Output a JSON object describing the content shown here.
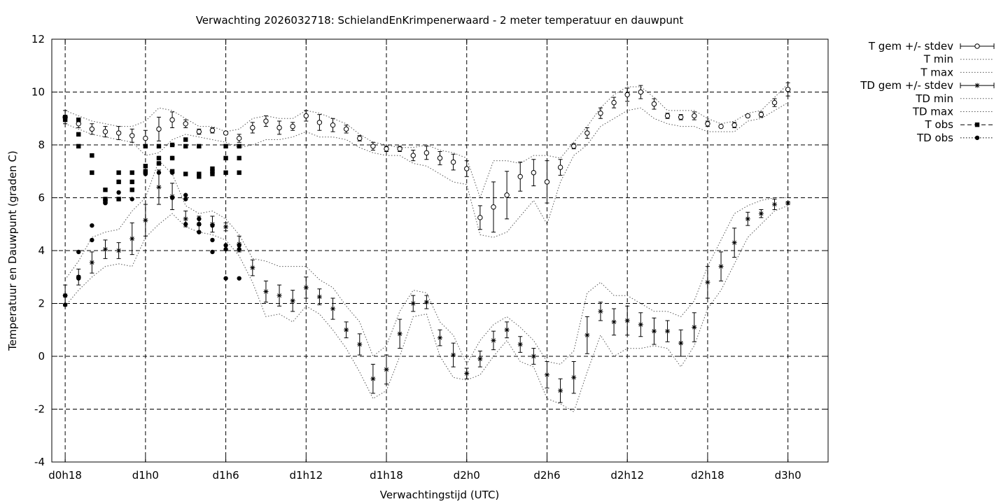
{
  "chart_data": {
    "type": "line",
    "title": "Verwachting 2026032718: SchielandEnKrimpenerwaard - 2 meter temperatuur en dauwpunt",
    "xlabel": "Verwachtingstijd (UTC)",
    "ylabel": "Temperatuur en Dauwpunt (graden C)",
    "xlim": [
      -1,
      57
    ],
    "ylim": [
      -4,
      12
    ],
    "x_ticks": [
      {
        "x": 0,
        "label": "d0h18"
      },
      {
        "x": 6,
        "label": "d1h0"
      },
      {
        "x": 12,
        "label": "d1h6"
      },
      {
        "x": 18,
        "label": "d1h12"
      },
      {
        "x": 24,
        "label": "d1h18"
      },
      {
        "x": 30,
        "label": "d2h0"
      },
      {
        "x": 36,
        "label": "d2h6"
      },
      {
        "x": 42,
        "label": "d2h12"
      },
      {
        "x": 48,
        "label": "d2h18"
      },
      {
        "x": 54,
        "label": "d3h0"
      }
    ],
    "y_ticks": [
      -4,
      -2,
      0,
      2,
      4,
      6,
      8,
      10,
      12
    ],
    "grid": true,
    "legend_position": "outside right",
    "legend": [
      "T gem +/- stdev",
      "T min",
      "T max",
      "TD gem +/- stdev",
      "TD min",
      "TD max",
      "T obs",
      "TD obs"
    ],
    "series": [
      {
        "name": "T gem +/- stdev",
        "x": [
          0,
          1,
          2,
          3,
          4,
          5,
          6,
          7,
          8,
          9,
          10,
          11,
          12,
          13,
          14,
          15,
          16,
          17,
          18,
          19,
          20,
          21,
          22,
          23,
          24,
          25,
          26,
          27,
          28,
          29,
          30,
          31,
          32,
          33,
          34,
          35,
          36,
          37,
          38,
          39,
          40,
          41,
          42,
          43,
          44,
          45,
          46,
          47,
          48,
          49,
          50,
          51,
          52,
          53,
          54
        ],
        "mean": [
          9.05,
          8.8,
          8.6,
          8.5,
          8.45,
          8.35,
          8.25,
          8.6,
          8.95,
          8.8,
          8.5,
          8.55,
          8.45,
          8.25,
          8.65,
          8.9,
          8.65,
          8.7,
          9.1,
          8.85,
          8.75,
          8.6,
          8.25,
          7.95,
          7.85,
          7.85,
          7.6,
          7.7,
          7.5,
          7.35,
          7.1,
          5.25,
          5.65,
          6.1,
          6.8,
          6.95,
          6.6,
          7.15,
          7.95,
          8.45,
          9.2,
          9.6,
          9.9,
          10.0,
          9.55,
          9.1,
          9.05,
          9.1,
          8.8,
          8.7,
          8.75,
          9.1,
          9.15,
          9.6,
          10.1
        ],
        "stdev": [
          0.25,
          0.15,
          0.2,
          0.2,
          0.25,
          0.25,
          0.3,
          0.45,
          0.3,
          0.15,
          0.1,
          0.1,
          0.05,
          0.15,
          0.2,
          0.2,
          0.25,
          0.15,
          0.2,
          0.3,
          0.25,
          0.15,
          0.1,
          0.15,
          0.1,
          0.1,
          0.2,
          0.25,
          0.25,
          0.3,
          0.3,
          0.45,
          0.95,
          0.9,
          0.55,
          0.5,
          0.8,
          0.3,
          0.1,
          0.2,
          0.2,
          0.2,
          0.25,
          0.25,
          0.2,
          0.1,
          0.1,
          0.15,
          0.1,
          0.05,
          0.1,
          0.05,
          0.1,
          0.15,
          0.25
        ]
      },
      {
        "name": "T min",
        "x": [
          0,
          1,
          2,
          3,
          4,
          5,
          6,
          7,
          8,
          9,
          10,
          11,
          12,
          13,
          14,
          15,
          16,
          17,
          18,
          19,
          20,
          21,
          22,
          23,
          24,
          25,
          26,
          27,
          28,
          29,
          30,
          31,
          32,
          33,
          34,
          35,
          36,
          37,
          38,
          39,
          40,
          41,
          42,
          43,
          44,
          45,
          46,
          47,
          48,
          49,
          50,
          51,
          52,
          53,
          54
        ],
        "values": [
          8.8,
          8.6,
          8.4,
          8.3,
          8.2,
          8.1,
          7.6,
          7.7,
          8.2,
          8.4,
          8.3,
          8.2,
          8.1,
          7.9,
          8.0,
          8.2,
          8.2,
          8.3,
          8.5,
          8.3,
          8.3,
          8.2,
          7.9,
          7.7,
          7.6,
          7.6,
          7.3,
          7.2,
          6.9,
          6.6,
          6.5,
          4.6,
          4.5,
          4.7,
          5.3,
          5.9,
          5.0,
          6.6,
          7.6,
          8.0,
          8.7,
          9.0,
          9.3,
          9.4,
          9.0,
          8.8,
          8.7,
          8.7,
          8.5,
          8.5,
          8.5,
          8.9,
          9.0,
          9.3,
          9.6
        ]
      },
      {
        "name": "T max",
        "x": [
          0,
          1,
          2,
          3,
          4,
          5,
          6,
          7,
          8,
          9,
          10,
          11,
          12,
          13,
          14,
          15,
          16,
          17,
          18,
          19,
          20,
          21,
          22,
          23,
          24,
          25,
          26,
          27,
          28,
          29,
          30,
          31,
          32,
          33,
          34,
          35,
          36,
          37,
          38,
          39,
          40,
          41,
          42,
          43,
          44,
          45,
          46,
          47,
          48,
          49,
          50,
          51,
          52,
          53,
          54
        ],
        "values": [
          9.3,
          9.1,
          8.9,
          8.8,
          8.7,
          8.7,
          8.9,
          9.4,
          9.3,
          9.0,
          8.7,
          8.7,
          8.5,
          8.6,
          9.0,
          9.1,
          9.0,
          9.0,
          9.3,
          9.2,
          9.0,
          8.8,
          8.4,
          8.1,
          8.0,
          7.9,
          7.9,
          8.0,
          7.8,
          7.7,
          7.5,
          6.0,
          7.4,
          7.4,
          7.3,
          7.6,
          7.6,
          7.5,
          8.1,
          8.7,
          9.4,
          9.9,
          10.2,
          10.2,
          9.8,
          9.3,
          9.3,
          9.3,
          9.0,
          8.8,
          8.9,
          9.2,
          9.3,
          9.8,
          10.3
        ]
      },
      {
        "name": "TD gem +/- stdev",
        "x": [
          0,
          1,
          2,
          3,
          4,
          5,
          6,
          7,
          8,
          9,
          10,
          11,
          12,
          13,
          14,
          15,
          16,
          17,
          18,
          19,
          20,
          21,
          22,
          23,
          24,
          25,
          26,
          27,
          28,
          29,
          30,
          31,
          32,
          33,
          34,
          35,
          36,
          37,
          38,
          39,
          40,
          41,
          42,
          43,
          44,
          45,
          46,
          47,
          48,
          49,
          50,
          51,
          52,
          53,
          54
        ],
        "mean": [
          2.3,
          3.0,
          3.55,
          4.05,
          4.0,
          4.45,
          5.15,
          6.4,
          6.05,
          5.2,
          5.0,
          5.0,
          4.9,
          4.25,
          3.35,
          2.45,
          2.3,
          2.1,
          2.6,
          2.25,
          1.8,
          1.0,
          0.45,
          -0.85,
          -0.5,
          0.85,
          2.0,
          2.05,
          0.7,
          0.05,
          -0.65,
          -0.1,
          0.6,
          1.0,
          0.45,
          0.0,
          -0.7,
          -1.3,
          -0.8,
          0.8,
          1.7,
          1.3,
          1.35,
          1.2,
          0.95,
          0.95,
          0.5,
          1.1,
          2.8,
          3.4,
          4.3,
          5.2,
          5.4,
          5.75,
          5.8
        ],
        "stdev": [
          0.4,
          0.3,
          0.4,
          0.35,
          0.3,
          0.6,
          0.6,
          0.65,
          0.5,
          0.3,
          0.3,
          0.3,
          0.15,
          0.3,
          0.3,
          0.4,
          0.4,
          0.4,
          0.4,
          0.3,
          0.4,
          0.3,
          0.4,
          0.55,
          0.55,
          0.55,
          0.3,
          0.25,
          0.3,
          0.45,
          0.2,
          0.3,
          0.35,
          0.3,
          0.3,
          0.3,
          0.5,
          0.45,
          0.6,
          0.7,
          0.35,
          0.5,
          0.55,
          0.45,
          0.5,
          0.4,
          0.5,
          0.55,
          0.6,
          0.55,
          0.55,
          0.25,
          0.15,
          0.2,
          0.05
        ]
      },
      {
        "name": "TD min",
        "x": [
          0,
          1,
          2,
          3,
          4,
          5,
          6,
          7,
          8,
          9,
          10,
          11,
          12,
          13,
          14,
          15,
          16,
          17,
          18,
          19,
          20,
          21,
          22,
          23,
          24,
          25,
          26,
          27,
          28,
          29,
          30,
          31,
          32,
          33,
          34,
          35,
          36,
          37,
          38,
          39,
          40,
          41,
          42,
          43,
          44,
          45,
          46,
          47,
          48,
          49,
          50,
          51,
          52,
          53,
          54
        ],
        "values": [
          1.9,
          2.5,
          3.0,
          3.4,
          3.5,
          3.4,
          4.5,
          5.0,
          5.4,
          4.9,
          4.7,
          4.6,
          4.4,
          3.8,
          2.8,
          1.5,
          1.6,
          1.3,
          1.9,
          1.6,
          1.0,
          0.3,
          -0.6,
          -1.6,
          -1.3,
          0.0,
          1.5,
          1.6,
          0.0,
          -0.8,
          -0.9,
          -0.7,
          0.0,
          0.6,
          -0.2,
          -0.4,
          -1.6,
          -1.8,
          -2.1,
          -0.6,
          0.8,
          0.0,
          0.3,
          0.3,
          0.4,
          0.3,
          -0.4,
          0.4,
          1.8,
          2.5,
          3.5,
          4.5,
          5.0,
          5.5,
          5.7
        ]
      },
      {
        "name": "TD max",
        "x": [
          0,
          1,
          2,
          3,
          4,
          5,
          6,
          7,
          8,
          9,
          10,
          11,
          12,
          13,
          14,
          15,
          16,
          17,
          18,
          19,
          20,
          21,
          22,
          23,
          24,
          25,
          26,
          27,
          28,
          29,
          30,
          31,
          32,
          33,
          34,
          35,
          36,
          37,
          38,
          39,
          40,
          41,
          42,
          43,
          44,
          45,
          46,
          47,
          48,
          49,
          50,
          51,
          52,
          53,
          54
        ],
        "values": [
          2.9,
          3.6,
          4.5,
          4.7,
          4.8,
          5.5,
          6.0,
          7.4,
          6.9,
          5.7,
          5.4,
          5.5,
          5.2,
          4.6,
          3.7,
          3.6,
          3.4,
          3.4,
          3.4,
          2.9,
          2.6,
          1.9,
          1.3,
          0.0,
          0.4,
          1.7,
          2.5,
          2.4,
          1.3,
          0.8,
          -0.3,
          0.6,
          1.2,
          1.5,
          1.1,
          0.6,
          -0.2,
          -0.3,
          0.2,
          2.4,
          2.8,
          2.3,
          2.3,
          2.0,
          1.7,
          1.7,
          1.5,
          2.1,
          3.4,
          4.4,
          5.4,
          5.7,
          5.9,
          6.0,
          6.0
        ]
      },
      {
        "name": "T obs",
        "x": [
          0,
          0,
          1,
          1,
          1,
          2,
          2,
          3,
          3,
          3,
          4,
          4,
          4,
          5,
          5,
          5,
          6,
          6,
          6,
          7,
          7,
          7,
          8,
          8,
          8,
          9,
          9,
          9,
          10,
          10,
          10,
          11,
          11,
          11,
          12,
          12,
          12,
          13,
          13,
          13
        ],
        "values": [
          8.95,
          9.05,
          8.95,
          8.4,
          7.95,
          7.6,
          6.95,
          6.3,
          5.95,
          5.85,
          6.95,
          6.6,
          5.95,
          6.95,
          6.6,
          6.3,
          7.95,
          7.2,
          7.0,
          7.95,
          7.5,
          7.3,
          8.0,
          7.5,
          7.0,
          8.2,
          7.95,
          6.9,
          7.95,
          6.9,
          6.8,
          7.1,
          7.0,
          6.9,
          7.95,
          7.5,
          6.95,
          7.95,
          7.5,
          6.95
        ]
      },
      {
        "name": "TD obs",
        "x": [
          0,
          0,
          1,
          1,
          1,
          2,
          2,
          3,
          3,
          3,
          4,
          4,
          4,
          5,
          5,
          5,
          6,
          6,
          6,
          7,
          7,
          7,
          8,
          8,
          8,
          9,
          9,
          9,
          10,
          10,
          10,
          11,
          11,
          11,
          12,
          12,
          12,
          13,
          13,
          13
        ],
        "values": [
          1.95,
          2.3,
          3.95,
          3.0,
          2.95,
          4.95,
          4.4,
          5.95,
          5.9,
          5.8,
          6.6,
          6.2,
          5.95,
          6.6,
          6.3,
          5.95,
          7.0,
          6.95,
          6.9,
          7.5,
          7.3,
          6.95,
          7.5,
          6.95,
          6.0,
          6.1,
          5.95,
          5.0,
          5.2,
          5.0,
          4.7,
          4.95,
          4.4,
          3.95,
          4.2,
          4.05,
          2.95,
          4.2,
          4.05,
          2.95
        ]
      }
    ]
  }
}
